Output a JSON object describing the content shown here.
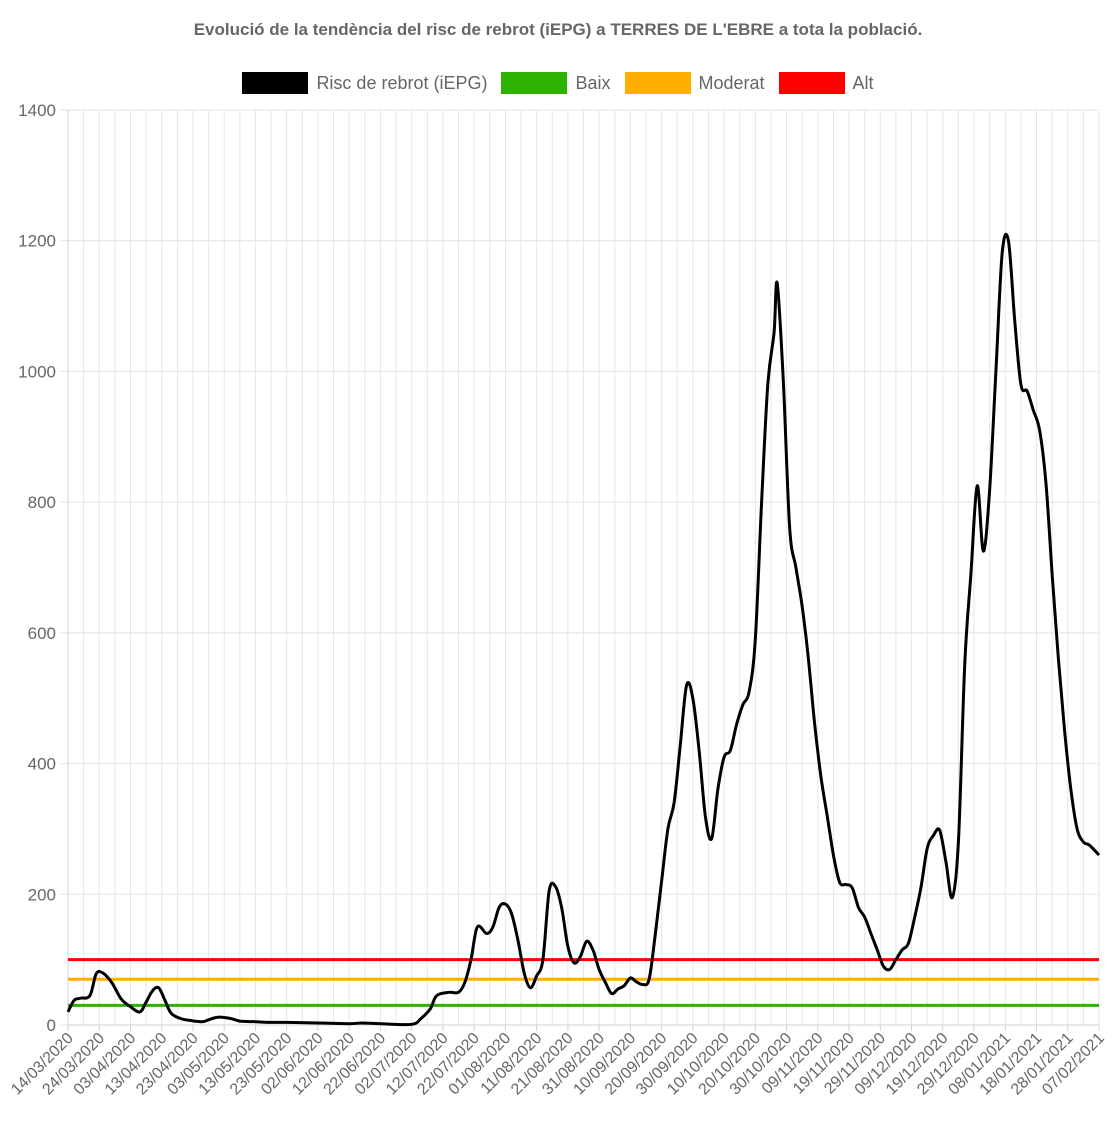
{
  "chart_data": {
    "type": "line",
    "title": "Evolució de la tendència del risc de rebrot (iEPG) a TERRES DE L'EBRE a tota la població.",
    "xlabel": "",
    "ylabel": "",
    "ylim": [
      0,
      1400
    ],
    "yticks": [
      0,
      200,
      400,
      600,
      800,
      1000,
      1200,
      1400
    ],
    "grid": true,
    "legend_position": "top",
    "x_tick_labels": [
      "14/03/2020",
      "24/03/2020",
      "03/04/2020",
      "13/04/2020",
      "23/04/2020",
      "03/05/2020",
      "13/05/2020",
      "23/05/2020",
      "02/06/2020",
      "12/06/2020",
      "22/06/2020",
      "02/07/2020",
      "12/07/2020",
      "22/07/2020",
      "01/08/2020",
      "11/08/2020",
      "21/08/2020",
      "31/08/2020",
      "10/09/2020",
      "20/09/2020",
      "30/09/2020",
      "10/10/2020",
      "20/10/2020",
      "30/10/2020",
      "09/11/2020",
      "19/11/2020",
      "29/11/2020",
      "09/12/2020",
      "19/12/2020",
      "29/12/2020",
      "08/01/2021",
      "18/01/2021",
      "28/01/2021",
      "07/02/2021"
    ],
    "x_start": "14/03/2020",
    "x_end": "07/02/2021",
    "series": [
      {
        "name": "Risc de rebrot (iEPG)",
        "color": "#000000",
        "points": [
          [
            "14/03/2020",
            20
          ],
          [
            "16/03/2020",
            38
          ],
          [
            "18/03/2020",
            41
          ],
          [
            "21/03/2020",
            45
          ],
          [
            "23/03/2020",
            78
          ],
          [
            "25/03/2020",
            80
          ],
          [
            "28/03/2020",
            65
          ],
          [
            "31/03/2020",
            40
          ],
          [
            "03/04/2020",
            28
          ],
          [
            "06/04/2020",
            20
          ],
          [
            "08/04/2020",
            35
          ],
          [
            "10/04/2020",
            52
          ],
          [
            "12/04/2020",
            57
          ],
          [
            "14/04/2020",
            38
          ],
          [
            "16/04/2020",
            18
          ],
          [
            "19/04/2020",
            10
          ],
          [
            "22/04/2020",
            7
          ],
          [
            "26/04/2020",
            5
          ],
          [
            "28/04/2020",
            8
          ],
          [
            "01/05/2020",
            12
          ],
          [
            "05/05/2020",
            10
          ],
          [
            "08/05/2020",
            6
          ],
          [
            "13/05/2020",
            5
          ],
          [
            "18/05/2020",
            4
          ],
          [
            "23/05/2020",
            4
          ],
          [
            "02/06/2020",
            3
          ],
          [
            "12/06/2020",
            2
          ],
          [
            "16/06/2020",
            3
          ],
          [
            "22/06/2020",
            2
          ],
          [
            "02/07/2020",
            1
          ],
          [
            "05/07/2020",
            10
          ],
          [
            "08/07/2020",
            25
          ],
          [
            "10/07/2020",
            45
          ],
          [
            "14/07/2020",
            50
          ],
          [
            "17/07/2020",
            50
          ],
          [
            "19/07/2020",
            65
          ],
          [
            "21/07/2020",
            100
          ],
          [
            "23/07/2020",
            150
          ],
          [
            "26/07/2020",
            140
          ],
          [
            "28/07/2020",
            150
          ],
          [
            "30/07/2020",
            180
          ],
          [
            "01/08/2020",
            185
          ],
          [
            "03/08/2020",
            170
          ],
          [
            "05/08/2020",
            130
          ],
          [
            "07/08/2020",
            80
          ],
          [
            "09/08/2020",
            57
          ],
          [
            "11/08/2020",
            75
          ],
          [
            "13/08/2020",
            100
          ],
          [
            "15/08/2020",
            205
          ],
          [
            "17/08/2020",
            212
          ],
          [
            "19/08/2020",
            180
          ],
          [
            "21/08/2020",
            120
          ],
          [
            "23/08/2020",
            95
          ],
          [
            "25/08/2020",
            105
          ],
          [
            "27/08/2020",
            128
          ],
          [
            "29/08/2020",
            115
          ],
          [
            "31/08/2020",
            85
          ],
          [
            "02/09/2020",
            65
          ],
          [
            "04/09/2020",
            48
          ],
          [
            "06/09/2020",
            55
          ],
          [
            "08/09/2020",
            60
          ],
          [
            "10/09/2020",
            72
          ],
          [
            "12/09/2020",
            66
          ],
          [
            "14/09/2020",
            62
          ],
          [
            "16/09/2020",
            70
          ],
          [
            "18/09/2020",
            140
          ],
          [
            "20/09/2020",
            220
          ],
          [
            "22/09/2020",
            300
          ],
          [
            "24/09/2020",
            340
          ],
          [
            "26/09/2020",
            430
          ],
          [
            "28/09/2020",
            520
          ],
          [
            "30/09/2020",
            500
          ],
          [
            "02/10/2020",
            420
          ],
          [
            "04/10/2020",
            320
          ],
          [
            "06/10/2020",
            285
          ],
          [
            "08/10/2020",
            360
          ],
          [
            "10/10/2020",
            410
          ],
          [
            "12/10/2020",
            420
          ],
          [
            "14/10/2020",
            460
          ],
          [
            "16/10/2020",
            490
          ],
          [
            "18/10/2020",
            510
          ],
          [
            "20/10/2020",
            590
          ],
          [
            "22/10/2020",
            800
          ],
          [
            "24/10/2020",
            980
          ],
          [
            "26/10/2020",
            1060
          ],
          [
            "27/10/2020",
            1135
          ],
          [
            "29/10/2020",
            980
          ],
          [
            "31/10/2020",
            760
          ],
          [
            "02/11/2020",
            700
          ],
          [
            "04/11/2020",
            640
          ],
          [
            "06/11/2020",
            560
          ],
          [
            "08/11/2020",
            460
          ],
          [
            "10/11/2020",
            380
          ],
          [
            "12/11/2020",
            320
          ],
          [
            "14/11/2020",
            260
          ],
          [
            "16/11/2020",
            218
          ],
          [
            "18/11/2020",
            215
          ],
          [
            "20/11/2020",
            210
          ],
          [
            "22/11/2020",
            180
          ],
          [
            "24/11/2020",
            165
          ],
          [
            "26/11/2020",
            140
          ],
          [
            "28/11/2020",
            115
          ],
          [
            "30/11/2020",
            90
          ],
          [
            "02/12/2020",
            85
          ],
          [
            "04/12/2020",
            100
          ],
          [
            "06/12/2020",
            115
          ],
          [
            "08/12/2020",
            125
          ],
          [
            "10/12/2020",
            165
          ],
          [
            "12/12/2020",
            210
          ],
          [
            "14/12/2020",
            270
          ],
          [
            "16/12/2020",
            290
          ],
          [
            "18/12/2020",
            298
          ],
          [
            "20/12/2020",
            250
          ],
          [
            "22/12/2020",
            195
          ],
          [
            "24/12/2020",
            280
          ],
          [
            "26/12/2020",
            550
          ],
          [
            "28/12/2020",
            690
          ],
          [
            "30/12/2020",
            825
          ],
          [
            "01/01/2021",
            725
          ],
          [
            "03/01/2021",
            820
          ],
          [
            "05/01/2021",
            1000
          ],
          [
            "07/01/2021",
            1180
          ],
          [
            "09/01/2021",
            1200
          ],
          [
            "11/01/2021",
            1080
          ],
          [
            "13/01/2021",
            980
          ],
          [
            "15/01/2021",
            970
          ],
          [
            "17/01/2021",
            940
          ],
          [
            "19/01/2021",
            910
          ],
          [
            "21/01/2021",
            830
          ],
          [
            "23/01/2021",
            690
          ],
          [
            "25/01/2021",
            560
          ],
          [
            "27/01/2021",
            450
          ],
          [
            "29/01/2021",
            360
          ],
          [
            "31/01/2021",
            300
          ],
          [
            "02/02/2021",
            280
          ],
          [
            "04/02/2021",
            275
          ],
          [
            "07/02/2021",
            260
          ]
        ]
      },
      {
        "name": "Baix",
        "color": "#2db200",
        "constant": 30
      },
      {
        "name": "Moderat",
        "color": "#ffae00",
        "constant": 70
      },
      {
        "name": "Alt",
        "color": "#ff0000",
        "constant": 100
      }
    ]
  }
}
